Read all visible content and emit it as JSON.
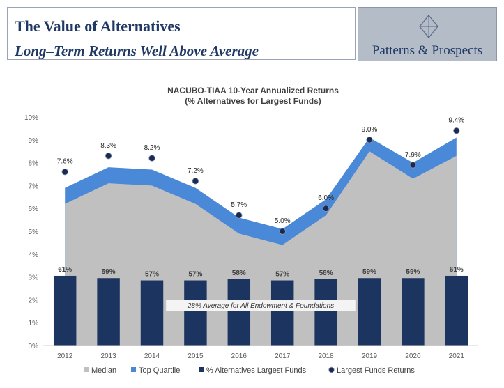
{
  "header": {
    "title": "The Value of Alternatives",
    "subtitle": "Long–Term Returns Well Above Average",
    "logo_text": "Patterns & Prospects",
    "logo_icon": "diamond-logo-icon"
  },
  "chart_data": {
    "type": "area",
    "title": "NACUBO-TIAA 10-Year Annualized Returns",
    "subtitle": "(% Alternatives for Largest Funds)",
    "categories": [
      "2012",
      "2013",
      "2014",
      "2015",
      "2016",
      "2017",
      "2018",
      "2019",
      "2020",
      "2021"
    ],
    "ylim": [
      0,
      10
    ],
    "yticks": [
      0,
      1,
      2,
      3,
      4,
      5,
      6,
      7,
      8,
      9,
      10
    ],
    "ytick_suffix": "%",
    "grid": false,
    "legend_position": "bottom",
    "series": [
      {
        "name": "Median",
        "kind": "area",
        "color": "#c0c0c0",
        "values": [
          6.2,
          7.1,
          7.0,
          6.2,
          4.9,
          4.4,
          5.7,
          8.5,
          7.3,
          8.3
        ]
      },
      {
        "name": "Top Quartile",
        "kind": "area",
        "color": "#4a88d8",
        "values": [
          6.9,
          7.8,
          7.7,
          6.9,
          5.6,
          5.1,
          6.4,
          9.1,
          8.0,
          9.1
        ]
      },
      {
        "name": "% Alternatives Largest Funds",
        "kind": "bar",
        "color": "#1b3560",
        "values": [
          61,
          59,
          57,
          57,
          58,
          57,
          58,
          59,
          59,
          61
        ],
        "labels": [
          "61%",
          "59%",
          "57%",
          "57%",
          "58%",
          "57%",
          "58%",
          "59%",
          "59%",
          "61%"
        ]
      },
      {
        "name": "Largest Funds Returns",
        "kind": "scatter",
        "color": "#1b2a4f",
        "values": [
          7.6,
          8.3,
          8.2,
          7.2,
          5.7,
          5.0,
          6.0,
          9.0,
          7.9,
          9.4
        ],
        "labels": [
          "7.6%",
          "8.3%",
          "8.2%",
          "7.2%",
          "5.7%",
          "5.0%",
          "6.0%",
          "9.0%",
          "7.9%",
          "9.4%"
        ]
      }
    ],
    "annotation": "28% Average for All Endowment & Foundations"
  }
}
